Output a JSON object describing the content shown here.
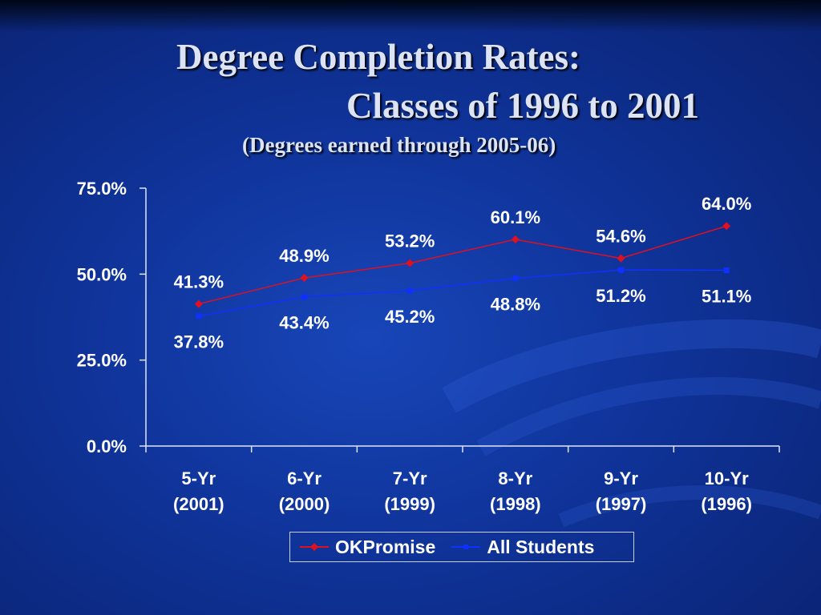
{
  "slide": {
    "title_line1": "Degree Completion Rates:",
    "title_line2": "Classes of 1996 to 2001",
    "subtitle": "(Degrees earned through 2005-06)"
  },
  "colors": {
    "background": "#0f3399",
    "okpromise": "#e01020",
    "all_students": "#1030ff",
    "text": "#ffffff"
  },
  "chart_data": {
    "type": "line",
    "categories": [
      [
        "5-Yr",
        "(2001)"
      ],
      [
        "6-Yr",
        "(2000)"
      ],
      [
        "7-Yr",
        "(1999)"
      ],
      [
        "8-Yr",
        "(1998)"
      ],
      [
        "9-Yr",
        "(1997)"
      ],
      [
        "10-Yr",
        "(1996)"
      ]
    ],
    "ylim": [
      0,
      75
    ],
    "yticks": [
      0,
      25,
      50,
      75
    ],
    "ytick_labels": [
      "0.0%",
      "25.0%",
      "50.0%",
      "75.0%"
    ],
    "grid": false,
    "legend_position": "bottom",
    "series": [
      {
        "name": "OKPromise",
        "marker": "diamond",
        "values": [
          41.3,
          48.9,
          53.2,
          60.1,
          54.6,
          64.0
        ],
        "labels": [
          "41.3%",
          "48.9%",
          "53.2%",
          "60.1%",
          "54.6%",
          "64.0%"
        ]
      },
      {
        "name": "All Students",
        "marker": "square",
        "values": [
          37.8,
          43.4,
          45.2,
          48.8,
          51.2,
          51.1
        ],
        "labels": [
          "37.8%",
          "43.4%",
          "45.2%",
          "48.8%",
          "51.2%",
          "51.1%"
        ]
      }
    ]
  }
}
